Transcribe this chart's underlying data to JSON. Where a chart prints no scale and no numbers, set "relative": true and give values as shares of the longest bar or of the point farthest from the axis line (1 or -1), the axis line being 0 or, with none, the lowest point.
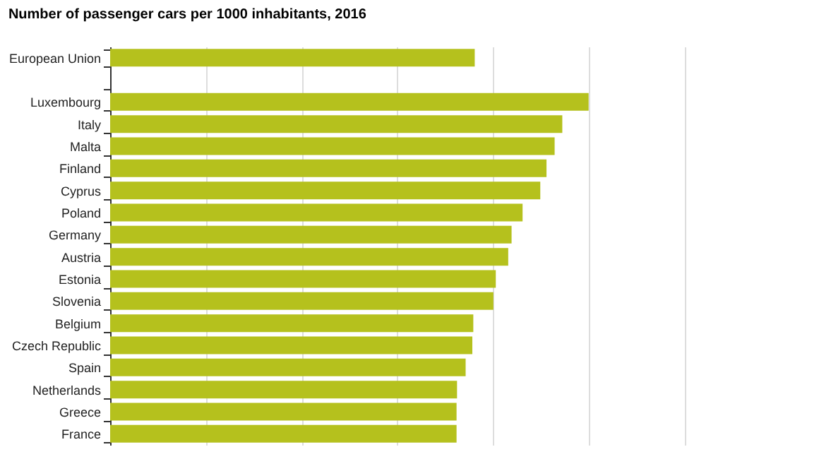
{
  "chart_data": {
    "type": "bar",
    "orientation": "horizontal",
    "relative": true,
    "title": "Number of passenger cars per 1000 inhabitants, 2016",
    "categories": [
      "European Union",
      null,
      "Luxembourg",
      "Italy",
      "Malta",
      "Finland",
      "Cyprus",
      "Poland",
      "Germany",
      "Austria",
      "Estonia",
      "Slovenia",
      "Belgium",
      "Czech Republic",
      "Spain",
      "Netherlands",
      "Greece",
      "France"
    ],
    "values": [
      0.762,
      null,
      1,
      0.945,
      0.929,
      0.912,
      0.899,
      0.862,
      0.839,
      0.832,
      0.806,
      0.801,
      0.759,
      0.757,
      0.743,
      0.725,
      0.724,
      0.724
    ],
    "color": "#b5c11d",
    "grid": "x"
  }
}
